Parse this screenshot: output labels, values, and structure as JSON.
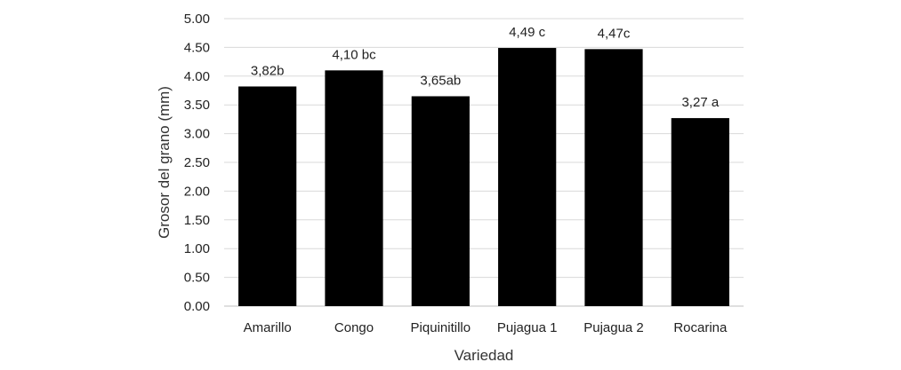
{
  "chart_data": {
    "type": "bar",
    "title": "",
    "xlabel": "Variedad",
    "ylabel": "Grosor del grano (mm)",
    "ylim": [
      0,
      5
    ],
    "yticks": [
      "0.00",
      "0.50",
      "1.00",
      "1.50",
      "2.00",
      "2.50",
      "3.00",
      "3.50",
      "4.00",
      "4.50",
      "5.00"
    ],
    "grid": true,
    "legend": "none",
    "bar_color": "#000000",
    "categories": [
      "Amarillo",
      "Congo",
      "Piquinitillo",
      "Pujagua 1",
      "Pujagua 2",
      "Rocarina"
    ],
    "values": [
      3.82,
      4.1,
      3.65,
      4.49,
      4.47,
      3.27
    ],
    "data_labels": [
      "3,82b",
      "4,10 bc",
      "3,65ab",
      "4,49 c",
      "4,47c",
      "3,27 a"
    ]
  }
}
